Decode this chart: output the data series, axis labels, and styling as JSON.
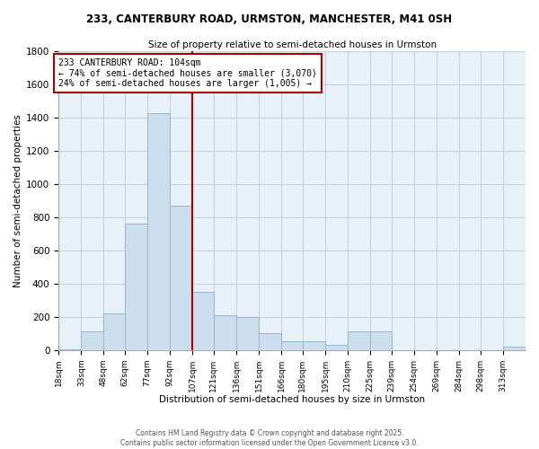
{
  "title1": "233, CANTERBURY ROAD, URMSTON, MANCHESTER, M41 0SH",
  "title2": "Size of property relative to semi-detached houses in Urmston",
  "xlabel": "Distribution of semi-detached houses by size in Urmston",
  "ylabel": "Number of semi-detached properties",
  "footer1": "Contains HM Land Registry data © Crown copyright and database right 2025.",
  "footer2": "Contains public sector information licensed under the Open Government Licence v3.0.",
  "annotation_title": "233 CANTERBURY ROAD: 104sqm",
  "annotation_line1": "← 74% of semi-detached houses are smaller (3,070)",
  "annotation_line2": "24% of semi-detached houses are larger (1,005) →",
  "marker_bin": 107,
  "categories": [
    "18sqm",
    "33sqm",
    "48sqm",
    "62sqm",
    "77sqm",
    "92sqm",
    "107sqm",
    "121sqm",
    "136sqm",
    "151sqm",
    "166sqm",
    "180sqm",
    "195sqm",
    "210sqm",
    "225sqm",
    "239sqm",
    "254sqm",
    "269sqm",
    "284sqm",
    "298sqm",
    "313sqm"
  ],
  "bin_edges": [
    18,
    33,
    48,
    62,
    77,
    92,
    107,
    121,
    136,
    151,
    166,
    180,
    195,
    210,
    225,
    239,
    254,
    269,
    284,
    298,
    313,
    328
  ],
  "values": [
    5,
    110,
    220,
    760,
    1430,
    870,
    350,
    210,
    200,
    100,
    50,
    50,
    30,
    110,
    110,
    0,
    0,
    0,
    0,
    0,
    20
  ],
  "bar_color": "#ccdded",
  "bar_edge_color": "#93b8cc",
  "marker_color": "#aa0000",
  "bg_color": "#e8f0f8",
  "grid_color": "#c8d0d8",
  "ylim": [
    0,
    1800
  ],
  "yticks": [
    0,
    200,
    400,
    600,
    800,
    1000,
    1200,
    1400,
    1600,
    1800
  ]
}
